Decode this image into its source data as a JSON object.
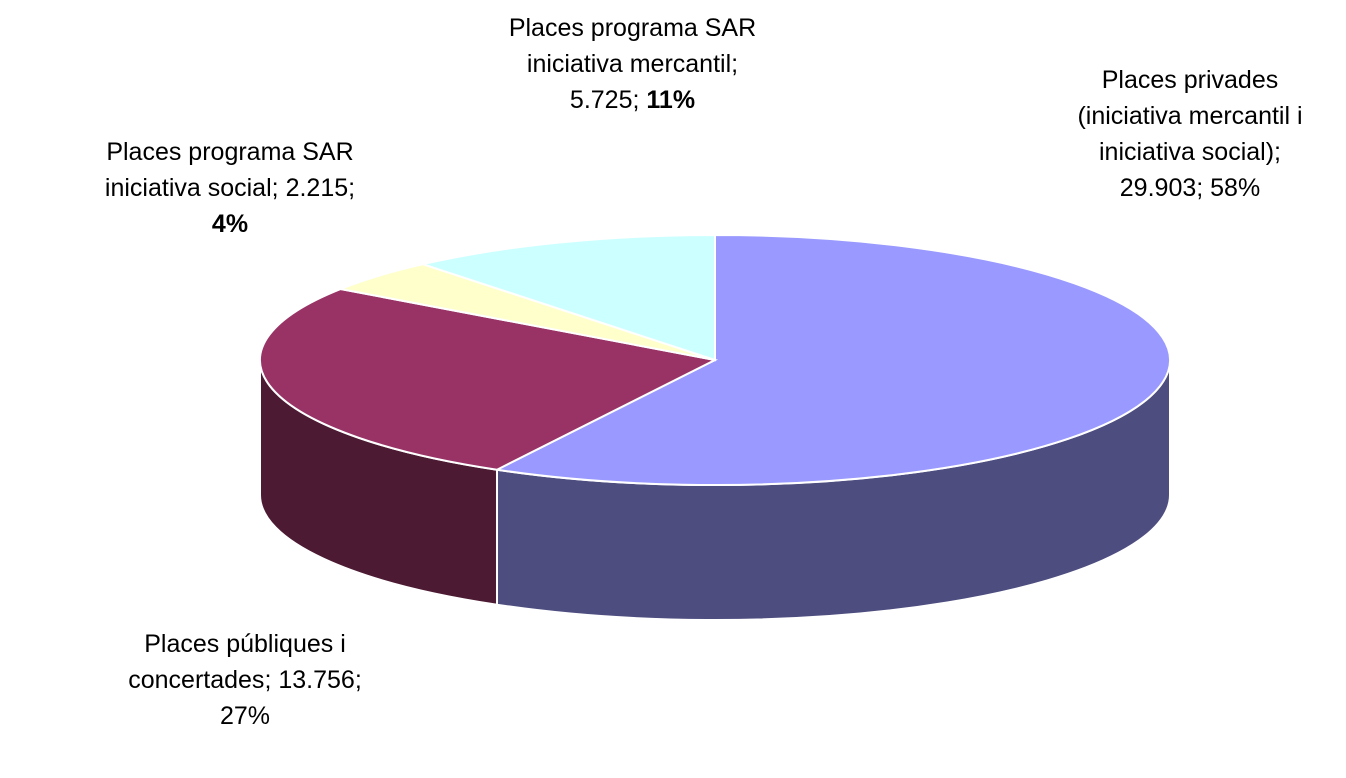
{
  "chart_data": {
    "type": "pie3d",
    "categories": [
      "Places privades (iniciativa mercantil i iniciativa social)",
      "Places públiques i concertades",
      "Places programa SAR iniciativa social",
      "Places programa SAR iniciativa mercantil"
    ],
    "values": [
      29903,
      13756,
      2215,
      5725
    ],
    "value_labels": [
      "29.903",
      "13.756",
      "2.215",
      "5.725"
    ],
    "percents": [
      58,
      27,
      4,
      11
    ],
    "percent_labels": [
      "58%",
      "27%",
      "4%",
      "11%"
    ],
    "percent_bold": [
      false,
      false,
      true,
      true
    ],
    "label_separator": "; ",
    "colors": [
      "#9999ff",
      "#993366",
      "#ffffcc",
      "#ccffff"
    ]
  }
}
